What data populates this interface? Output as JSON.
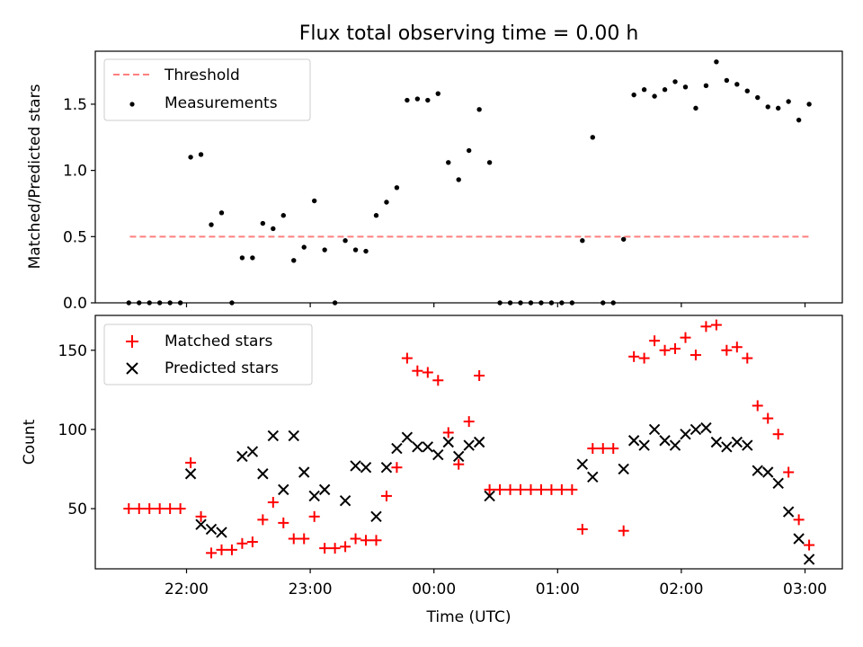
{
  "title": "Flux total observing time = 0.00 h",
  "x_axis": {
    "label": "Time (UTC)",
    "ticks": [
      {
        "t": 0,
        "label": "22:00"
      },
      {
        "t": 60,
        "label": "23:00"
      },
      {
        "t": 120,
        "label": "00:00"
      },
      {
        "t": 180,
        "label": "01:00"
      },
      {
        "t": 240,
        "label": "02:00"
      },
      {
        "t": 300,
        "label": "03:00"
      }
    ]
  },
  "chart_data": [
    {
      "type": "scatter",
      "panel": "top",
      "ylabel": "Matched/Predicted stars",
      "ylim": [
        0,
        1.9
      ],
      "yticks": [
        0.0,
        0.5,
        1.0,
        1.5
      ],
      "ytick_labels": [
        "0.0",
        "0.5",
        "1.0",
        "1.5"
      ],
      "legend_position": "top-left",
      "threshold": {
        "name": "Threshold",
        "value": 0.5,
        "x_range": [
          -27.5,
          302.5
        ],
        "color": "#ff7f7f"
      },
      "measurements": {
        "name": "Measurements",
        "color": "#000000",
        "points": [
          [
            -28,
            0
          ],
          [
            -23,
            0
          ],
          [
            -18,
            0
          ],
          [
            -13,
            0
          ],
          [
            -8,
            0
          ],
          [
            -3,
            0
          ],
          [
            2,
            1.1
          ],
          [
            7,
            1.12
          ],
          [
            12,
            0.59
          ],
          [
            17,
            0.68
          ],
          [
            22,
            0
          ],
          [
            27,
            0.34
          ],
          [
            32,
            0.34
          ],
          [
            37,
            0.6
          ],
          [
            42,
            0.56
          ],
          [
            47,
            0.66
          ],
          [
            52,
            0.32
          ],
          [
            57,
            0.42
          ],
          [
            62,
            0.77
          ],
          [
            67,
            0.4
          ],
          [
            72,
            0
          ],
          [
            77,
            0.47
          ],
          [
            82,
            0.4
          ],
          [
            87,
            0.39
          ],
          [
            92,
            0.66
          ],
          [
            97,
            0.76
          ],
          [
            102,
            0.87
          ],
          [
            107,
            1.53
          ],
          [
            112,
            1.54
          ],
          [
            117,
            1.53
          ],
          [
            122,
            1.58
          ],
          [
            127,
            1.06
          ],
          [
            132,
            0.93
          ],
          [
            137,
            1.15
          ],
          [
            142,
            1.46
          ],
          [
            147,
            1.06
          ],
          [
            152,
            0
          ],
          [
            157,
            0
          ],
          [
            162,
            0
          ],
          [
            167,
            0
          ],
          [
            172,
            0
          ],
          [
            177,
            0
          ],
          [
            182,
            0
          ],
          [
            187,
            0
          ],
          [
            192,
            0.47
          ],
          [
            197,
            1.25
          ],
          [
            202,
            0
          ],
          [
            207,
            0
          ],
          [
            212,
            0.48
          ],
          [
            217,
            1.57
          ],
          [
            222,
            1.61
          ],
          [
            227,
            1.56
          ],
          [
            232,
            1.61
          ],
          [
            237,
            1.67
          ],
          [
            242,
            1.63
          ],
          [
            247,
            1.47
          ],
          [
            252,
            1.64
          ],
          [
            257,
            1.82
          ],
          [
            262,
            1.68
          ],
          [
            267,
            1.65
          ],
          [
            272,
            1.6
          ],
          [
            277,
            1.55
          ],
          [
            282,
            1.48
          ],
          [
            287,
            1.47
          ],
          [
            292,
            1.52
          ],
          [
            297,
            1.38
          ],
          [
            302,
            1.5
          ]
        ]
      }
    },
    {
      "type": "scatter",
      "panel": "bottom",
      "ylabel": "Count",
      "ylim": [
        12,
        172
      ],
      "yticks": [
        50,
        100,
        150
      ],
      "ytick_labels": [
        "50",
        "100",
        "150"
      ],
      "legend_position": "top-left",
      "series": [
        {
          "name": "Matched stars",
          "marker": "plus",
          "color": "#ff0000",
          "points": [
            [
              -28,
              50
            ],
            [
              -23,
              50
            ],
            [
              -18,
              50
            ],
            [
              -13,
              50
            ],
            [
              -8,
              50
            ],
            [
              -3,
              50
            ],
            [
              2,
              79
            ],
            [
              7,
              45
            ],
            [
              12,
              22
            ],
            [
              17,
              24
            ],
            [
              22,
              24
            ],
            [
              27,
              28
            ],
            [
              32,
              29
            ],
            [
              37,
              43
            ],
            [
              42,
              54
            ],
            [
              47,
              41
            ],
            [
              52,
              31
            ],
            [
              57,
              31
            ],
            [
              62,
              45
            ],
            [
              67,
              25
            ],
            [
              72,
              25
            ],
            [
              77,
              26
            ],
            [
              82,
              31
            ],
            [
              87,
              30
            ],
            [
              92,
              30
            ],
            [
              97,
              58
            ],
            [
              102,
              76
            ],
            [
              107,
              145
            ],
            [
              112,
              137
            ],
            [
              117,
              136
            ],
            [
              122,
              131
            ],
            [
              127,
              98
            ],
            [
              132,
              78
            ],
            [
              137,
              105
            ],
            [
              142,
              134
            ],
            [
              147,
              62
            ],
            [
              152,
              62
            ],
            [
              157,
              62
            ],
            [
              162,
              62
            ],
            [
              167,
              62
            ],
            [
              172,
              62
            ],
            [
              177,
              62
            ],
            [
              182,
              62
            ],
            [
              187,
              62
            ],
            [
              192,
              37
            ],
            [
              197,
              88
            ],
            [
              202,
              88
            ],
            [
              207,
              88
            ],
            [
              212,
              36
            ],
            [
              217,
              146
            ],
            [
              222,
              145
            ],
            [
              227,
              156
            ],
            [
              232,
              150
            ],
            [
              237,
              151
            ],
            [
              242,
              158
            ],
            [
              247,
              147
            ],
            [
              252,
              165
            ],
            [
              257,
              166
            ],
            [
              262,
              150
            ],
            [
              267,
              152
            ],
            [
              272,
              145
            ],
            [
              277,
              115
            ],
            [
              282,
              107
            ],
            [
              287,
              97
            ],
            [
              292,
              73
            ],
            [
              297,
              43
            ],
            [
              302,
              27
            ]
          ]
        },
        {
          "name": "Predicted stars",
          "marker": "x",
          "color": "#000000",
          "points": [
            [
              2,
              72
            ],
            [
              7,
              40
            ],
            [
              12,
              37
            ],
            [
              17,
              35
            ],
            [
              27,
              83
            ],
            [
              32,
              86
            ],
            [
              37,
              72
            ],
            [
              42,
              96
            ],
            [
              47,
              62
            ],
            [
              52,
              96
            ],
            [
              57,
              73
            ],
            [
              62,
              58
            ],
            [
              67,
              62
            ],
            [
              77,
              55
            ],
            [
              82,
              77
            ],
            [
              87,
              76
            ],
            [
              92,
              45
            ],
            [
              97,
              76
            ],
            [
              102,
              88
            ],
            [
              107,
              95
            ],
            [
              112,
              89
            ],
            [
              117,
              89
            ],
            [
              122,
              84
            ],
            [
              127,
              92
            ],
            [
              132,
              83
            ],
            [
              137,
              90
            ],
            [
              142,
              92
            ],
            [
              147,
              58
            ],
            [
              192,
              78
            ],
            [
              197,
              70
            ],
            [
              212,
              75
            ],
            [
              217,
              93
            ],
            [
              222,
              90
            ],
            [
              227,
              100
            ],
            [
              232,
              93
            ],
            [
              237,
              90
            ],
            [
              242,
              97
            ],
            [
              247,
              100
            ],
            [
              252,
              101
            ],
            [
              257,
              92
            ],
            [
              262,
              89
            ],
            [
              267,
              92
            ],
            [
              272,
              90
            ],
            [
              277,
              74
            ],
            [
              282,
              73
            ],
            [
              287,
              66
            ],
            [
              292,
              48
            ],
            [
              297,
              31
            ],
            [
              302,
              18
            ]
          ]
        }
      ]
    }
  ]
}
